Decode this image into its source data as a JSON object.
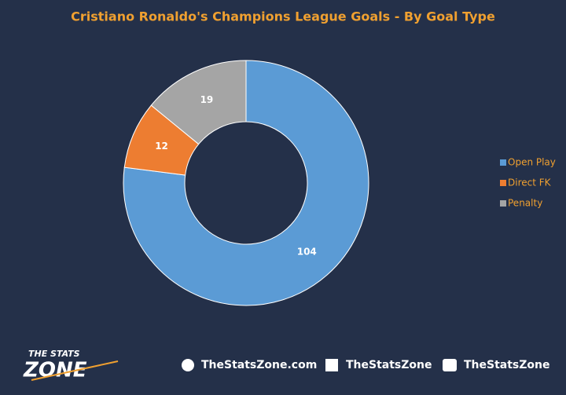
{
  "chart_data": {
    "type": "donut",
    "title": "Cristiano Ronaldo's Champions League Goals - By Goal Type",
    "categories": [
      "Open Play",
      "Direct FK",
      "Penalty"
    ],
    "values": [
      104,
      12,
      19
    ],
    "colors": [
      "#5b9bd5",
      "#ed7d31",
      "#a5a5a5"
    ],
    "legend": "right"
  },
  "footer": {
    "logo_top": "THE STATS",
    "logo_bottom": "ZONE",
    "website": "TheStatsZone.com",
    "facebook": "TheStatsZone",
    "twitter": "TheStatsZone"
  }
}
